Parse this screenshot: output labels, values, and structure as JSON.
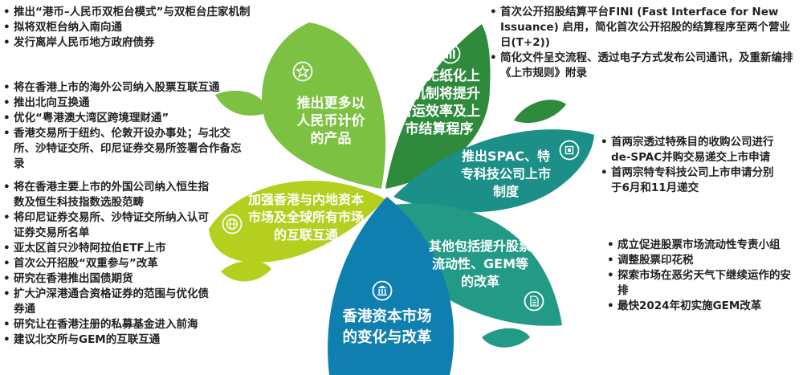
{
  "colors": {
    "green_light": "#7cc142",
    "green_dark": "#2e8b3c",
    "teal": "#1b8f88",
    "teal_mid": "#229a86",
    "lime": "#b5cf1e",
    "blue": "#0f7fb0",
    "text": "#222222"
  },
  "petals": {
    "rmb": {
      "label": "推出更多以人民币计价的产品",
      "icon": "star-icon"
    },
    "paperless": {
      "label": "扩大无纸化上市机制将提升营运效率及上市结算程序",
      "icon": "bar-chart-icon"
    },
    "spac": {
      "label": "推出SPAC、特专科技公司上市制度",
      "icon": "chip-icon"
    },
    "connect": {
      "label": "加强香港与内地资本市场及全球所有市场的互联互通",
      "icon": "globe-icon"
    },
    "liquidity": {
      "label": "其他包括提升股票流动性、GEM等的改革",
      "icon": "document-icon"
    },
    "center": {
      "label": "香港资本市场的变化与改革",
      "icon": "bank-icon"
    }
  },
  "lists": {
    "rmb": [
      "推出“港币–人民币双柜台模式”与双柜台庄家机制",
      "拟将双柜台纳入南向通",
      "发行离岸人民币地方政府债券"
    ],
    "overseas": [
      "将在香港上市的海外公司纳入股票互联互通",
      "推出北向互换通",
      "优化“粤港澳大湾区跨境理财通”",
      "香港交易所于纽约、伦敦开设办事处；与北交所、沙特证交所、印尼证券交易所签署合作备忘录"
    ],
    "connect": [
      "将在香港主要上市的外国公司纳入恒生指数及恒生科技指数选股范畴",
      "将印尼证券交易所、沙特证交所纳入认可证券交易所名单",
      "亚太区首只沙特阿拉伯ETF上市",
      "首次公开招股“双重参与”改革",
      "研究在香港推出国债期货",
      "扩大沪深港通合资格证券的范围与优化债券通",
      "研究让在香港注册的私募基金进入前海",
      "建议北交所与GEM的互联互通"
    ],
    "paperless": [
      "首次公开招股结算平台FINI (Fast Interface for New Issuance) 启用，简化首次公开招股的结算程序至两个营业日(T+2))",
      "简化文件呈交流程、透过电子方式发布公司通讯，及重新编排《上市规则》附录"
    ],
    "spac": [
      "首两宗透过特殊目的收购公司进行de-SPAC并购交易递交上市申请",
      "首两宗特专科技公司上市申请分别于6月和11月递交"
    ],
    "liquidity": [
      "成立促进股票市场流动性专责小组",
      "调整股票印花税",
      "探索市场在恶劣天气下继续运作的安排",
      "最快2024年初实施GEM改革"
    ]
  }
}
